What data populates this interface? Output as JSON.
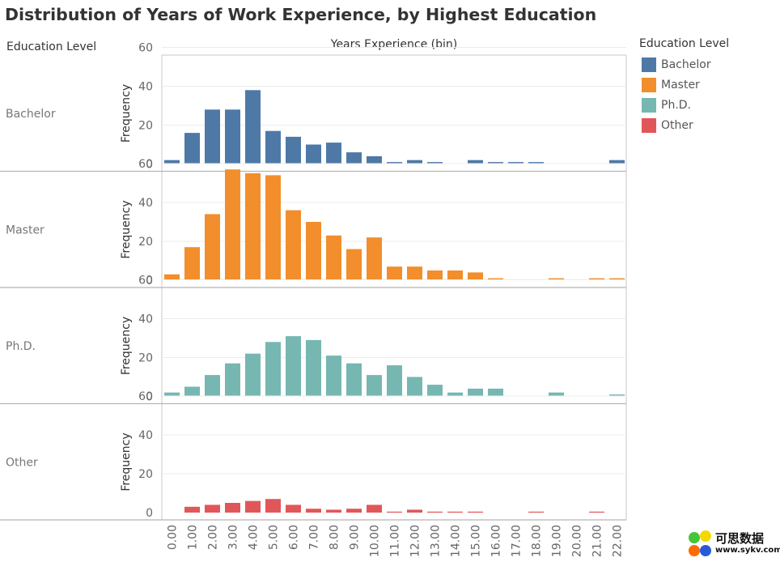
{
  "title": "Distribution of Years of Work Experience, by Highest Education",
  "row_header": "Education Level",
  "column_header": "Years Experience (bin)",
  "legend": {
    "title": "Education Level",
    "items": [
      {
        "label": "Bachelor",
        "color": "#4e79a7"
      },
      {
        "label": "Master",
        "color": "#f28e2b"
      },
      {
        "label": "Ph.D.",
        "color": "#76b7b2"
      },
      {
        "label": "Other",
        "color": "#e15759"
      }
    ]
  },
  "watermark": {
    "text_cn": "可思数据",
    "text_url": "www.sykv.com"
  },
  "chart_data": {
    "type": "bar",
    "xlabel": "Years Experience (bin)",
    "ylabel": "Frequency",
    "ylim": [
      0,
      60
    ],
    "y_ticks": [
      "0",
      "20",
      "40",
      "60"
    ],
    "categories": [
      "0.00",
      "1.00",
      "2.00",
      "3.00",
      "4.00",
      "5.00",
      "6.00",
      "7.00",
      "8.00",
      "9.00",
      "10.00",
      "11.00",
      "12.00",
      "13.00",
      "14.00",
      "15.00",
      "16.00",
      "17.00",
      "18.00",
      "19.00",
      "20.00",
      "21.00",
      "22.00"
    ],
    "series": [
      {
        "name": "Bachelor",
        "color": "#4e79a7",
        "values": [
          2,
          16,
          28,
          28,
          38,
          17,
          14,
          10,
          11,
          6,
          4,
          1,
          2,
          1,
          0,
          2,
          1,
          1,
          1,
          0,
          0,
          0,
          2
        ]
      },
      {
        "name": "Master",
        "color": "#f28e2b",
        "values": [
          3,
          17,
          34,
          57,
          55,
          54,
          36,
          30,
          23,
          16,
          22,
          7,
          7,
          5,
          5,
          4,
          1,
          0,
          0,
          1,
          0,
          1,
          1
        ]
      },
      {
        "name": "Ph.D.",
        "color": "#76b7b2",
        "values": [
          2,
          5,
          11,
          17,
          22,
          28,
          31,
          29,
          21,
          17,
          11,
          16,
          10,
          6,
          2,
          4,
          4,
          0,
          0,
          2,
          0,
          0,
          1
        ]
      },
      {
        "name": "Other",
        "color": "#e15759",
        "values": [
          0,
          3,
          4,
          5,
          6,
          7,
          4,
          2,
          1.5,
          2,
          4,
          0.5,
          1.5,
          0.5,
          0.5,
          0.5,
          0,
          0,
          0.5,
          0,
          0,
          0.5,
          0
        ]
      }
    ]
  }
}
